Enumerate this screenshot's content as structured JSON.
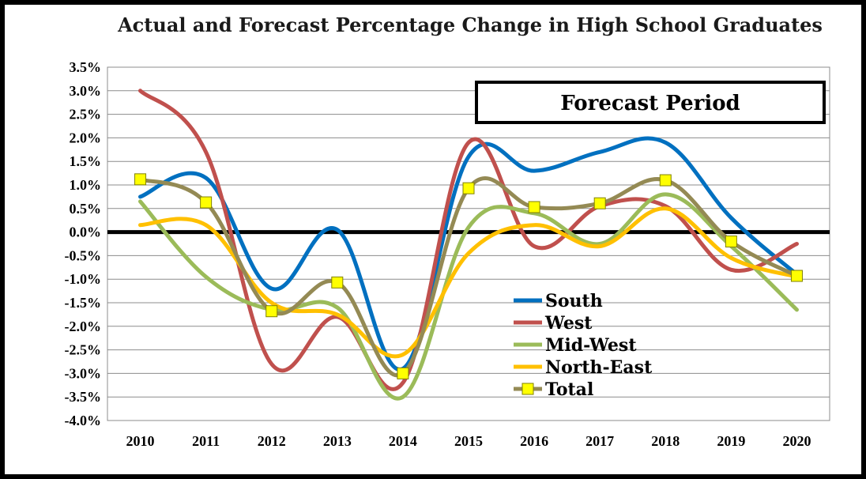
{
  "chart_data": {
    "type": "line",
    "title": "Actual and Forecast Percentage Change in High School Graduates",
    "xlabel": "",
    "ylabel": "",
    "x": [
      "2010",
      "2011",
      "2012",
      "2013",
      "2014",
      "2015",
      "2016",
      "2017",
      "2018",
      "2019",
      "2020"
    ],
    "ylim": [
      -4.0,
      3.5
    ],
    "yticks": [
      3.5,
      3.0,
      2.5,
      2.0,
      1.5,
      1.0,
      0.5,
      0.0,
      -0.5,
      -1.0,
      -1.5,
      -2.0,
      -2.5,
      -3.0,
      -3.5,
      -4.0
    ],
    "ytick_labels": [
      "3.5%",
      "3.0%",
      "2.5%",
      "2.0%",
      "1.5%",
      "1.0%",
      "0.5%",
      "0.0%",
      "-0.5%",
      "-1.0%",
      "-1.5%",
      "-2.0%",
      "-2.5%",
      "-3.0%",
      "-3.5%",
      "-4.0%"
    ],
    "grid": true,
    "legend_position": "bottom-right",
    "annotation": "Forecast Period",
    "series": [
      {
        "name": "South",
        "color": "#0070c0",
        "values": [
          0.75,
          1.15,
          -1.2,
          0.05,
          -2.9,
          1.6,
          1.3,
          1.7,
          1.9,
          0.3,
          -0.9
        ]
      },
      {
        "name": "West",
        "color": "#c0504d",
        "values": [
          3.0,
          1.7,
          -2.8,
          -1.8,
          -3.2,
          1.9,
          -0.3,
          0.55,
          0.55,
          -0.8,
          -0.25
        ]
      },
      {
        "name": "Mid-West",
        "color": "#9bbb59",
        "values": [
          0.65,
          -0.95,
          -1.65,
          -1.6,
          -3.5,
          0.1,
          0.4,
          -0.25,
          0.8,
          -0.3,
          -1.65
        ]
      },
      {
        "name": "North-East",
        "color": "#ffc000",
        "values": [
          0.15,
          0.15,
          -1.5,
          -1.75,
          -2.6,
          -0.45,
          0.15,
          -0.3,
          0.5,
          -0.55,
          -0.95
        ]
      },
      {
        "name": "Total",
        "color": "#948a54",
        "marker": "square",
        "marker_color": "#ffff00",
        "values": [
          1.12,
          0.63,
          -1.68,
          -1.07,
          -3.0,
          0.93,
          0.53,
          0.61,
          1.1,
          -0.2,
          -0.93
        ]
      }
    ]
  }
}
